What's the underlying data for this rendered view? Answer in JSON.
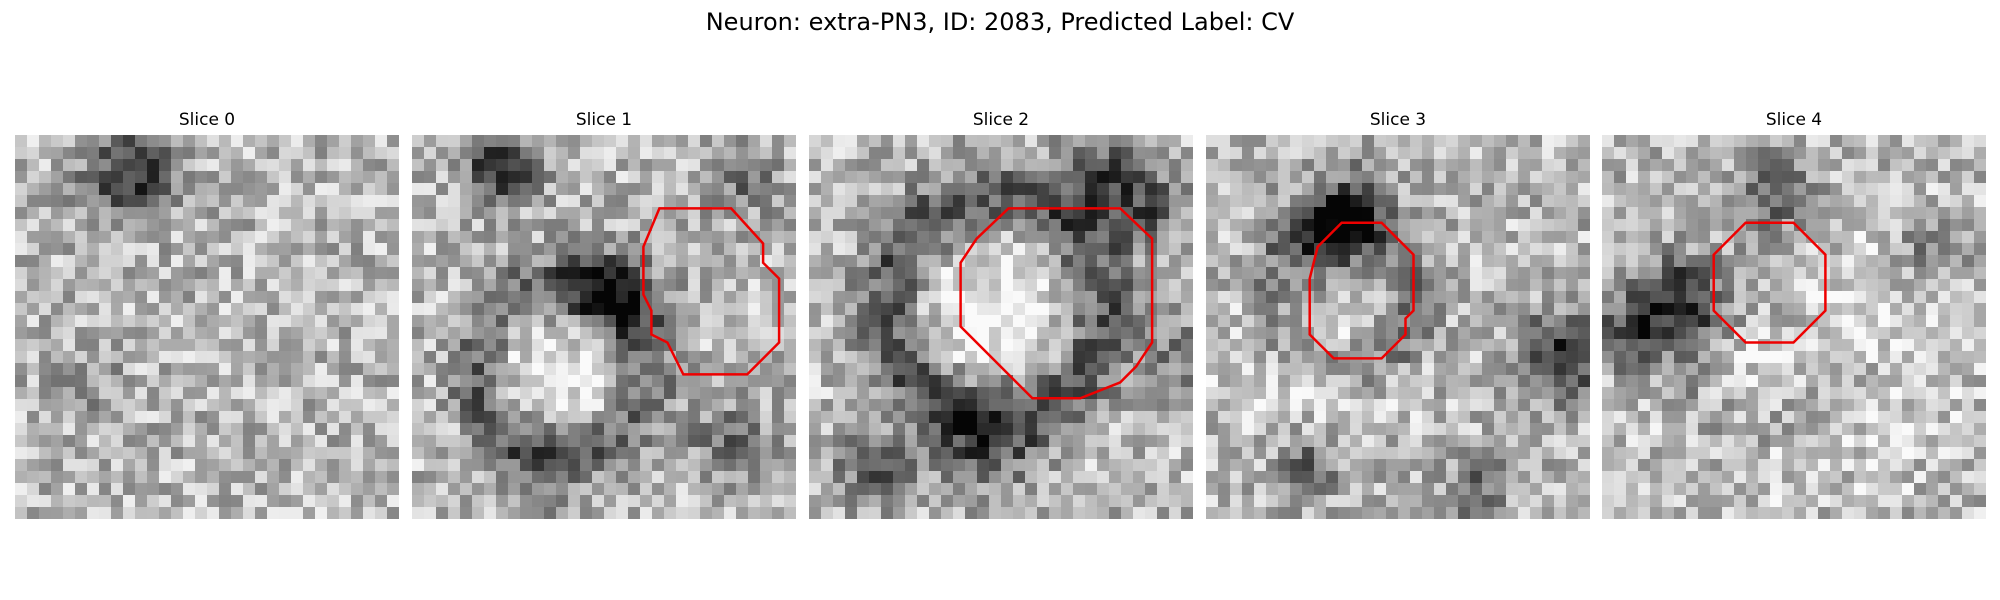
{
  "figure": {
    "title": "Neuron: extra-PN3, ID: 2083, Predicted Label: CV"
  },
  "panels": [
    {
      "title": "Slice 0",
      "has_contour": false
    },
    {
      "title": "Slice 1",
      "has_contour": true
    },
    {
      "title": "Slice 2",
      "has_contour": true
    },
    {
      "title": "Slice 3",
      "has_contour": true
    },
    {
      "title": "Slice 4",
      "has_contour": true
    }
  ],
  "colors": {
    "contour": "#ee0000",
    "colormap": "gray"
  }
}
